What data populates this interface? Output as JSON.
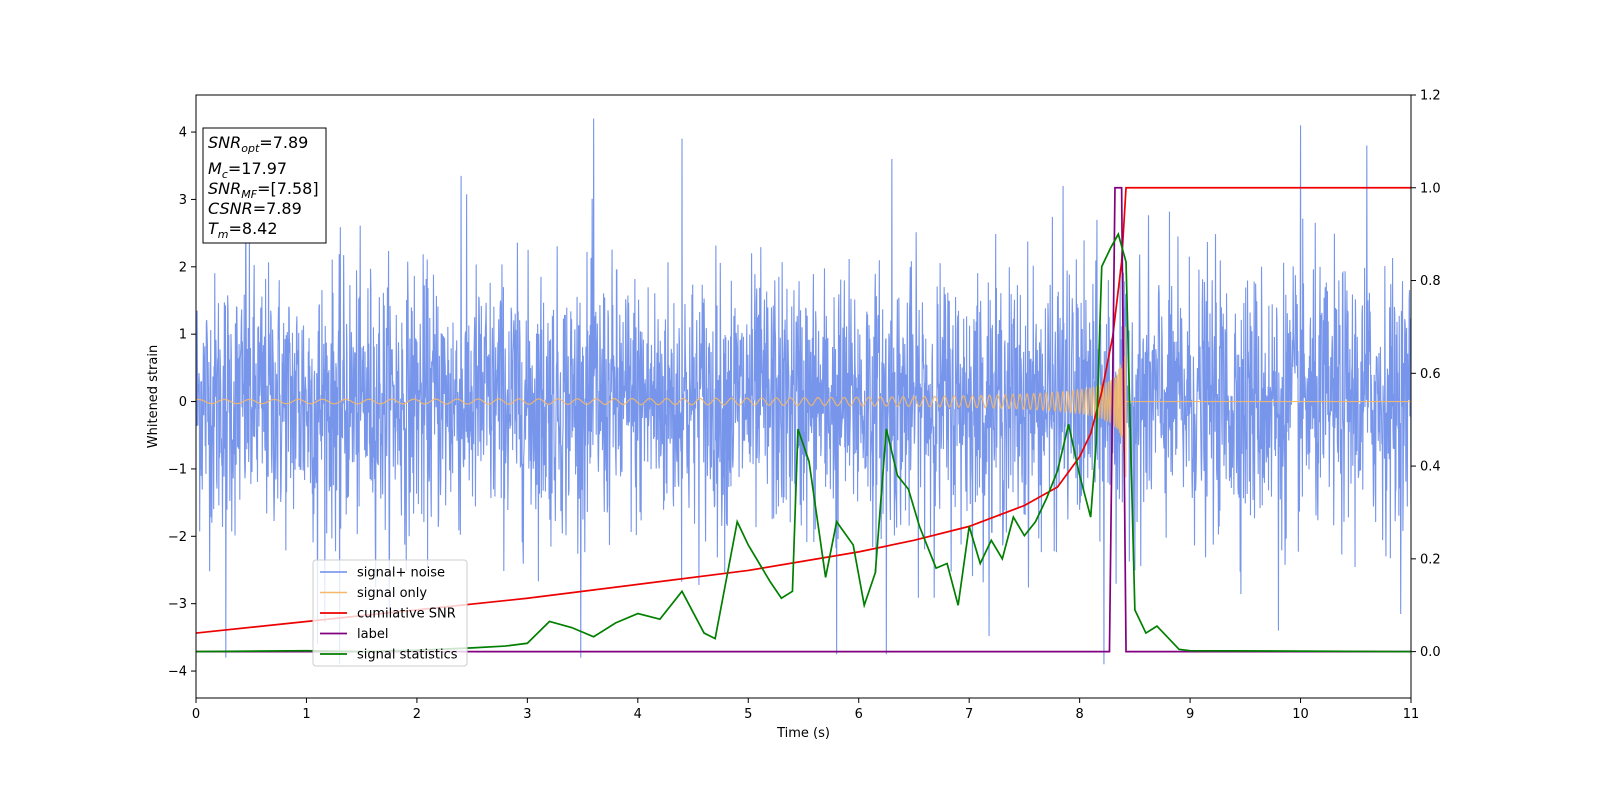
{
  "chart_data": {
    "type": "line",
    "xlabel": "Time (s)",
    "ylabel": "Whitened strain",
    "xlim": [
      0,
      11
    ],
    "ylim": [
      -4.4,
      4.55
    ],
    "y2lim": [
      -0.1,
      1.2
    ],
    "x_ticks": [
      0,
      1,
      2,
      3,
      4,
      5,
      6,
      7,
      8,
      9,
      10,
      11
    ],
    "y_ticks": [
      -4,
      -3,
      -2,
      -1,
      0,
      1,
      2,
      3,
      4
    ],
    "y2_ticks": [
      0.0,
      0.2,
      0.4,
      0.6,
      0.8,
      1.0,
      1.2
    ],
    "y2_tick_labels": [
      "0.0",
      "0.2",
      "0.4",
      "0.6",
      "0.8",
      "1.0",
      "1.2"
    ],
    "grid": false,
    "legend_position": "lower-left",
    "annotation": {
      "lines": [
        {
          "base": "SNR",
          "sub": "opt",
          "value": "=7.89"
        },
        {
          "base": "M",
          "sub": "c",
          "value": "=17.97"
        },
        {
          "base": "SNR",
          "sub": "MF",
          "value": "=[7.58]"
        },
        {
          "base": "CSNR",
          "sub": "",
          "value": "=7.89"
        },
        {
          "base": "T",
          "sub": "m",
          "value": "=8.42"
        }
      ]
    },
    "series": [
      {
        "name": "signal+ noise",
        "color": "#6b8ce8",
        "axis": "left",
        "kind": "noise",
        "sigma": 0.95,
        "extremes": [
          {
            "x": 0.27,
            "y": -3.8
          },
          {
            "x": 0.45,
            "y": 3.1
          },
          {
            "x": 1.1,
            "y": -3.6
          },
          {
            "x": 1.3,
            "y": -3.9
          },
          {
            "x": 2.4,
            "y": 3.35
          },
          {
            "x": 3.6,
            "y": 4.2
          },
          {
            "x": 4.4,
            "y": 3.9
          },
          {
            "x": 5.8,
            "y": -3.75
          },
          {
            "x": 6.25,
            "y": -3.75
          },
          {
            "x": 6.3,
            "y": 3.6
          },
          {
            "x": 7.85,
            "y": 3.2
          },
          {
            "x": 8.22,
            "y": -3.9
          },
          {
            "x": 9.8,
            "y": -3.4
          },
          {
            "x": 10.0,
            "y": 4.1
          },
          {
            "x": 10.6,
            "y": 3.8
          }
        ]
      },
      {
        "name": "signal only",
        "color": "#f5b86a",
        "axis": "left",
        "kind": "chirp",
        "t_merge": 8.42,
        "amp_start": 0.03,
        "amp_end": 2.0
      },
      {
        "name": "cumilative SNR",
        "color": "#ee0000",
        "axis": "right",
        "points": [
          [
            0,
            0.04
          ],
          [
            1,
            0.065
          ],
          [
            2,
            0.09
          ],
          [
            3,
            0.115
          ],
          [
            4,
            0.145
          ],
          [
            5,
            0.175
          ],
          [
            6,
            0.215
          ],
          [
            6.5,
            0.24
          ],
          [
            7,
            0.27
          ],
          [
            7.5,
            0.315
          ],
          [
            7.8,
            0.355
          ],
          [
            8.0,
            0.42
          ],
          [
            8.1,
            0.47
          ],
          [
            8.2,
            0.56
          ],
          [
            8.3,
            0.68
          ],
          [
            8.38,
            0.84
          ],
          [
            8.42,
            1.0
          ],
          [
            11,
            1.0
          ]
        ]
      },
      {
        "name": "label",
        "color": "#800080",
        "axis": "right",
        "points": [
          [
            0,
            0.0
          ],
          [
            8.27,
            0.0
          ],
          [
            8.32,
            1.0
          ],
          [
            8.38,
            1.0
          ],
          [
            8.42,
            0.0
          ],
          [
            11,
            0.0
          ]
        ]
      },
      {
        "name": "signal statistics",
        "color": "#007f00",
        "axis": "right",
        "points": [
          [
            0,
            0.0
          ],
          [
            1.0,
            0.002
          ],
          [
            1.5,
            0.0
          ],
          [
            2.0,
            0.003
          ],
          [
            2.5,
            0.008
          ],
          [
            2.8,
            0.012
          ],
          [
            3.0,
            0.018
          ],
          [
            3.2,
            0.065
          ],
          [
            3.4,
            0.052
          ],
          [
            3.6,
            0.032
          ],
          [
            3.8,
            0.062
          ],
          [
            4.0,
            0.082
          ],
          [
            4.2,
            0.07
          ],
          [
            4.4,
            0.13
          ],
          [
            4.6,
            0.04
          ],
          [
            4.7,
            0.028
          ],
          [
            4.9,
            0.28
          ],
          [
            5.0,
            0.23
          ],
          [
            5.2,
            0.15
          ],
          [
            5.3,
            0.115
          ],
          [
            5.4,
            0.13
          ],
          [
            5.45,
            0.48
          ],
          [
            5.55,
            0.41
          ],
          [
            5.7,
            0.16
          ],
          [
            5.8,
            0.28
          ],
          [
            5.95,
            0.23
          ],
          [
            6.05,
            0.1
          ],
          [
            6.15,
            0.17
          ],
          [
            6.25,
            0.48
          ],
          [
            6.35,
            0.38
          ],
          [
            6.45,
            0.35
          ],
          [
            6.55,
            0.27
          ],
          [
            6.7,
            0.18
          ],
          [
            6.8,
            0.19
          ],
          [
            6.9,
            0.1
          ],
          [
            7.0,
            0.27
          ],
          [
            7.1,
            0.19
          ],
          [
            7.2,
            0.24
          ],
          [
            7.3,
            0.2
          ],
          [
            7.4,
            0.29
          ],
          [
            7.5,
            0.25
          ],
          [
            7.6,
            0.28
          ],
          [
            7.7,
            0.33
          ],
          [
            7.8,
            0.39
          ],
          [
            7.9,
            0.49
          ],
          [
            8.0,
            0.38
          ],
          [
            8.1,
            0.29
          ],
          [
            8.15,
            0.45
          ],
          [
            8.2,
            0.83
          ],
          [
            8.28,
            0.87
          ],
          [
            8.35,
            0.9
          ],
          [
            8.42,
            0.84
          ],
          [
            8.5,
            0.09
          ],
          [
            8.6,
            0.04
          ],
          [
            8.7,
            0.055
          ],
          [
            8.8,
            0.03
          ],
          [
            8.9,
            0.005
          ],
          [
            9.0,
            0.002
          ],
          [
            11,
            0.0
          ]
        ]
      }
    ]
  }
}
